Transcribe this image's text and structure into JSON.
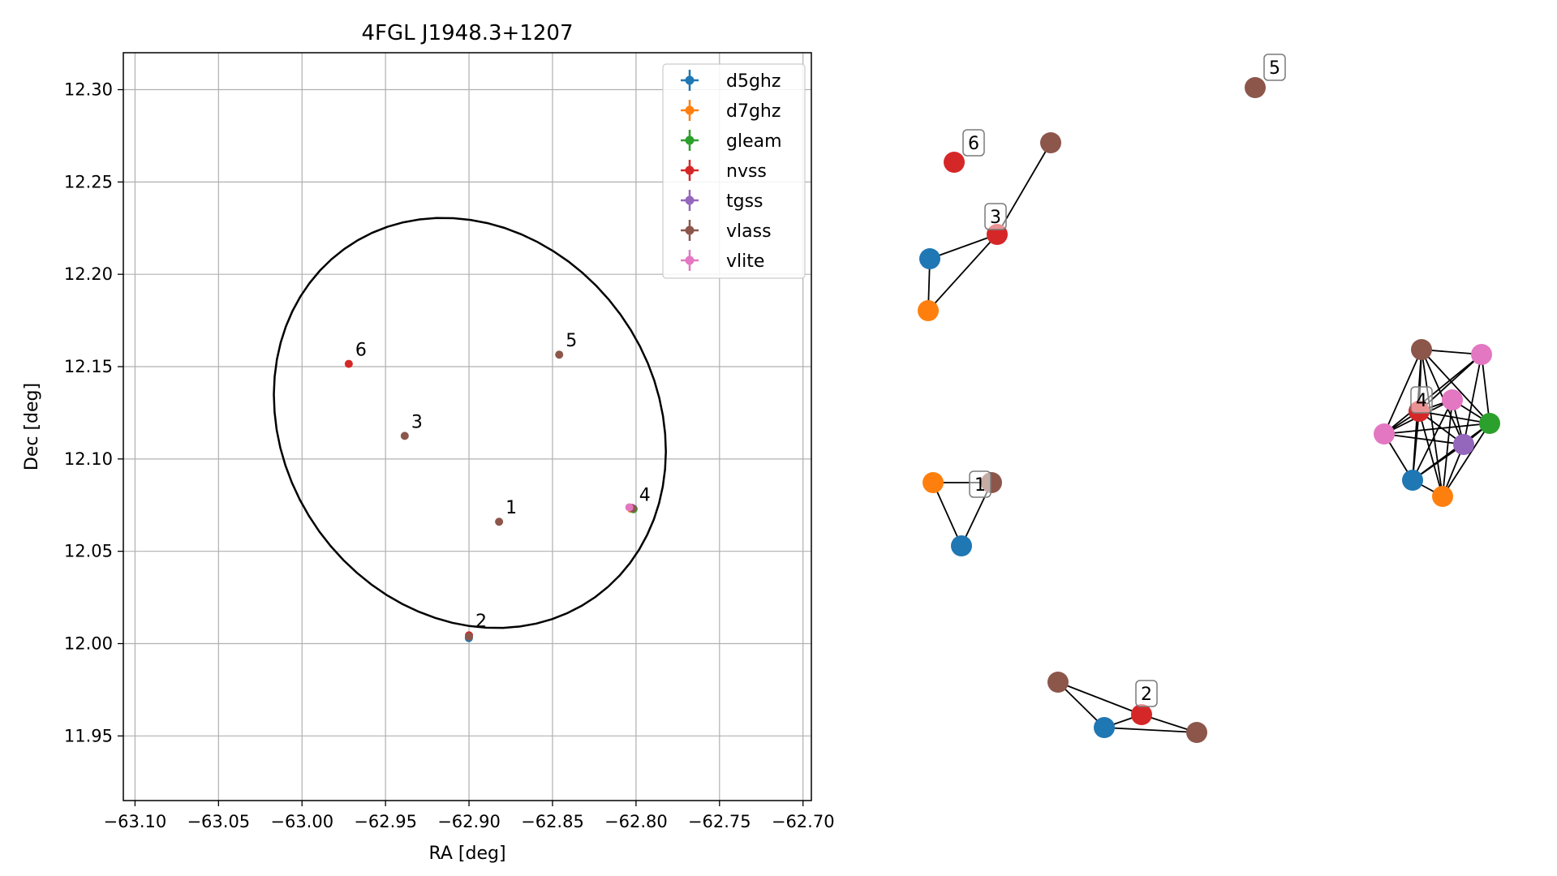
{
  "chart_data": [
    {
      "type": "scatter",
      "title": "4FGL J1948.3+1207",
      "xlabel": "RA [deg]",
      "ylabel": "Dec [deg]",
      "xlim": [
        -63.107,
        -62.695
      ],
      "ylim": [
        11.915,
        12.32
      ],
      "grid": true,
      "legend_position": "top-right",
      "xticks": [
        -63.1,
        -63.05,
        -63.0,
        -62.95,
        -62.9,
        -62.85,
        -62.8,
        -62.75,
        -62.7
      ],
      "yticks": [
        11.95,
        12.0,
        12.05,
        12.1,
        12.15,
        12.2,
        12.25,
        12.3
      ],
      "xtick_labels": [
        "−63.10",
        "−63.05",
        "−63.00",
        "−62.95",
        "−62.90",
        "−62.85",
        "−62.80",
        "−62.75",
        "−62.70"
      ],
      "ytick_labels": [
        "11.95",
        "12.00",
        "12.05",
        "12.10",
        "12.15",
        "12.20",
        "12.25",
        "12.30"
      ],
      "ellipse": {
        "center_ra": -62.8995,
        "center_dec": 12.1195,
        "semi_axis_a_deg": 0.1224,
        "semi_axis_b_deg": 0.1055,
        "pa_deg": 146,
        "color": "#000000"
      },
      "series": [
        {
          "name": "d5ghz",
          "color": "#1f77b4",
          "points": [
            {
              "ra": -62.8015,
              "dec": 12.073
            },
            {
              "ra": -62.9001,
              "dec": 12.003
            }
          ]
        },
        {
          "name": "d7ghz",
          "color": "#ff7f0e",
          "points": [
            {
              "ra": -62.803,
              "dec": 12.073
            }
          ]
        },
        {
          "name": "gleam",
          "color": "#2ca02c",
          "points": [
            {
              "ra": -62.8015,
              "dec": 12.0728
            }
          ]
        },
        {
          "name": "nvss",
          "color": "#d62728",
          "points": [
            {
              "ra": -62.972,
              "dec": 12.1515
            },
            {
              "ra": -62.8025,
              "dec": 12.0735
            },
            {
              "ra": -62.9,
              "dec": 12.0045
            }
          ]
        },
        {
          "name": "tgss",
          "color": "#9467bd",
          "points": [
            {
              "ra": -62.802,
              "dec": 12.0733
            }
          ]
        },
        {
          "name": "vlass",
          "color": "#8c564b",
          "points": [
            {
              "ra": -62.882,
              "dec": 12.066
            },
            {
              "ra": -62.9,
              "dec": 12.0038
            },
            {
              "ra": -62.9385,
              "dec": 12.1125
            },
            {
              "ra": -62.802,
              "dec": 12.0732
            },
            {
              "ra": -62.846,
              "dec": 12.1565
            }
          ]
        },
        {
          "name": "vlite",
          "color": "#e377c2",
          "points": [
            {
              "ra": -62.804,
              "dec": 12.0738
            }
          ]
        }
      ],
      "annotations": [
        {
          "text": "1",
          "ra": -62.882,
          "dec": 12.066
        },
        {
          "text": "2",
          "ra": -62.9,
          "dec": 12.0045
        },
        {
          "text": "3",
          "ra": -62.9385,
          "dec": 12.1125
        },
        {
          "text": "4",
          "ra": -62.802,
          "dec": 12.073
        },
        {
          "text": "5",
          "ra": -62.846,
          "dec": 12.1565
        },
        {
          "text": "6",
          "ra": -62.972,
          "dec": 12.1515
        }
      ]
    },
    {
      "type": "network",
      "title": "",
      "nodes": [
        {
          "id": "g6_nvss",
          "catalog": "nvss",
          "color": "#d62728"
        },
        {
          "id": "g5_vlass",
          "catalog": "vlass",
          "color": "#8c564b"
        },
        {
          "id": "g3_vlass",
          "catalog": "vlass",
          "color": "#8c564b"
        },
        {
          "id": "g3_nvss",
          "catalog": "nvss",
          "color": "#d62728"
        },
        {
          "id": "g3_d5",
          "catalog": "d5ghz",
          "color": "#1f77b4"
        },
        {
          "id": "g3_d7",
          "catalog": "d7ghz",
          "color": "#ff7f0e"
        },
        {
          "id": "g1_d7",
          "catalog": "d7ghz",
          "color": "#ff7f0e"
        },
        {
          "id": "g1_vlass",
          "catalog": "vlass",
          "color": "#8c564b"
        },
        {
          "id": "g1_d5",
          "catalog": "d5ghz",
          "color": "#1f77b4"
        },
        {
          "id": "g2_vlass_a",
          "catalog": "vlass",
          "color": "#8c564b"
        },
        {
          "id": "g2_nvss",
          "catalog": "nvss",
          "color": "#d62728"
        },
        {
          "id": "g2_d5",
          "catalog": "d5ghz",
          "color": "#1f77b4"
        },
        {
          "id": "g2_vlass_b",
          "catalog": "vlass",
          "color": "#8c564b"
        },
        {
          "id": "g4_vlass",
          "catalog": "vlass",
          "color": "#8c564b"
        },
        {
          "id": "g4_vlite_a",
          "catalog": "vlite",
          "color": "#e377c2"
        },
        {
          "id": "g4_vlite_b",
          "catalog": "vlite",
          "color": "#e377c2"
        },
        {
          "id": "g4_nvss",
          "catalog": "nvss",
          "color": "#d62728"
        },
        {
          "id": "g4_vlite_c",
          "catalog": "vlite",
          "color": "#e377c2"
        },
        {
          "id": "g4_gleam",
          "catalog": "gleam",
          "color": "#2ca02c"
        },
        {
          "id": "g4_tgss",
          "catalog": "tgss",
          "color": "#9467bd"
        },
        {
          "id": "g4_d5",
          "catalog": "d5ghz",
          "color": "#1f77b4"
        },
        {
          "id": "g4_d7",
          "catalog": "d7ghz",
          "color": "#ff7f0e"
        }
      ],
      "edges": [
        [
          "g3_vlass",
          "g3_nvss"
        ],
        [
          "g3_nvss",
          "g3_d5"
        ],
        [
          "g3_nvss",
          "g3_d7"
        ],
        [
          "g3_d5",
          "g3_d7"
        ],
        [
          "g1_d7",
          "g1_vlass"
        ],
        [
          "g1_d7",
          "g1_d5"
        ],
        [
          "g1_vlass",
          "g1_d5"
        ],
        [
          "g2_vlass_a",
          "g2_nvss"
        ],
        [
          "g2_vlass_a",
          "g2_d5"
        ],
        [
          "g2_nvss",
          "g2_d5"
        ],
        [
          "g2_nvss",
          "g2_vlass_b"
        ],
        [
          "g2_d5",
          "g2_vlass_b"
        ],
        [
          "g4_vlass",
          "g4_vlite_a"
        ],
        [
          "g4_vlass",
          "g4_nvss"
        ],
        [
          "g4_vlass",
          "g4_vlite_c"
        ],
        [
          "g4_vlass",
          "g4_gleam"
        ],
        [
          "g4_vlass",
          "g4_tgss"
        ],
        [
          "g4_vlass",
          "g4_d5"
        ],
        [
          "g4_vlass",
          "g4_d7"
        ],
        [
          "g4_vlite_a",
          "g4_nvss"
        ],
        [
          "g4_vlite_a",
          "g4_vlite_c"
        ],
        [
          "g4_vlite_a",
          "g4_gleam"
        ],
        [
          "g4_vlite_a",
          "g4_tgss"
        ],
        [
          "g4_vlite_b",
          "g4_nvss"
        ],
        [
          "g4_vlite_b",
          "g4_vlite_c"
        ],
        [
          "g4_vlite_b",
          "g4_gleam"
        ],
        [
          "g4_vlite_b",
          "g4_tgss"
        ],
        [
          "g4_vlite_b",
          "g4_d5"
        ],
        [
          "g4_vlite_b",
          "g4_d7"
        ],
        [
          "g4_nvss",
          "g4_vlite_c"
        ],
        [
          "g4_nvss",
          "g4_gleam"
        ],
        [
          "g4_nvss",
          "g4_tgss"
        ],
        [
          "g4_nvss",
          "g4_d5"
        ],
        [
          "g4_nvss",
          "g4_d7"
        ],
        [
          "g4_vlite_c",
          "g4_gleam"
        ],
        [
          "g4_vlite_c",
          "g4_tgss"
        ],
        [
          "g4_vlite_c",
          "g4_d5"
        ],
        [
          "g4_gleam",
          "g4_tgss"
        ],
        [
          "g4_gleam",
          "g4_d5"
        ],
        [
          "g4_gleam",
          "g4_d7"
        ],
        [
          "g4_tgss",
          "g4_d5"
        ],
        [
          "g4_tgss",
          "g4_d7"
        ],
        [
          "g4_d5",
          "g4_d7"
        ]
      ],
      "group_labels": [
        {
          "text": "6",
          "near": "g6_nvss"
        },
        {
          "text": "5",
          "near": "g5_vlass"
        },
        {
          "text": "3",
          "near": "g3_nvss"
        },
        {
          "text": "1",
          "near": "g1_vlass"
        },
        {
          "text": "2",
          "near": "g2_nvss"
        },
        {
          "text": "4",
          "near": "g4_vlite_c"
        }
      ]
    }
  ]
}
